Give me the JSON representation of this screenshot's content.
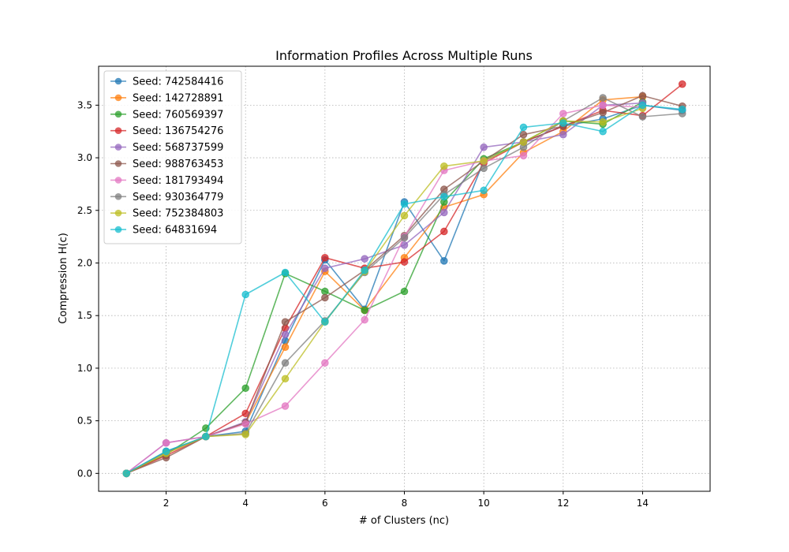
{
  "chart_data": {
    "type": "line",
    "title": "Information Profiles Across Multiple Runs",
    "xlabel": "# of Clusters (nc)",
    "ylabel": "Compression H(c)",
    "xlim": [
      0.3,
      15.7
    ],
    "ylim": [
      -0.17,
      3.87
    ],
    "x_ticks": [
      2,
      4,
      6,
      8,
      10,
      12,
      14
    ],
    "y_ticks": [
      0.0,
      0.5,
      1.0,
      1.5,
      2.0,
      2.5,
      3.0,
      3.5
    ],
    "grid": true,
    "legend_position": "upper left",
    "series": [
      {
        "name": "Seed: 742584416",
        "color": "#1f77b4",
        "x": [
          1,
          2,
          3,
          4,
          5,
          6,
          7,
          8,
          9,
          10,
          11,
          12,
          13,
          14,
          15
        ],
        "y": [
          0.0,
          0.21,
          0.35,
          0.4,
          1.26,
          2.03,
          1.56,
          2.58,
          2.02,
          2.97,
          3.15,
          3.3,
          3.37,
          3.5,
          3.45
        ]
      },
      {
        "name": "Seed: 142728891",
        "color": "#ff7f0e",
        "x": [
          1,
          2,
          3,
          4,
          5,
          6,
          7,
          8,
          9,
          10,
          11,
          12,
          13,
          14
        ],
        "y": [
          0.0,
          0.2,
          0.35,
          0.48,
          1.2,
          1.92,
          1.55,
          2.05,
          2.53,
          2.65,
          3.05,
          3.25,
          3.55,
          3.58
        ]
      },
      {
        "name": "Seed: 760569397",
        "color": "#2ca02c",
        "x": [
          1,
          2,
          3,
          4,
          5,
          6,
          7,
          8,
          9,
          10,
          11,
          12,
          13,
          14
        ],
        "y": [
          0.0,
          0.18,
          0.43,
          0.81,
          1.9,
          1.73,
          1.55,
          1.73,
          2.58,
          2.99,
          3.15,
          3.35,
          3.32,
          3.53
        ]
      },
      {
        "name": "Seed: 136754276",
        "color": "#d62728",
        "x": [
          1,
          2,
          3,
          4,
          5,
          6,
          7,
          8,
          9,
          10,
          11,
          12,
          13,
          14,
          15
        ],
        "y": [
          0.0,
          0.17,
          0.35,
          0.57,
          1.38,
          2.05,
          1.95,
          2.01,
          2.3,
          2.95,
          3.15,
          3.3,
          3.45,
          3.4,
          3.7
        ]
      },
      {
        "name": "Seed: 568737599",
        "color": "#9467bd",
        "x": [
          1,
          2,
          3,
          4,
          5,
          6,
          7,
          8,
          9,
          10,
          11,
          12,
          13,
          14
        ],
        "y": [
          0.0,
          0.29,
          0.35,
          0.49,
          1.32,
          1.95,
          2.04,
          2.17,
          2.48,
          3.1,
          3.15,
          3.22,
          3.5,
          3.52
        ]
      },
      {
        "name": "Seed: 988763453",
        "color": "#8c564b",
        "x": [
          1,
          2,
          3,
          4,
          5,
          6,
          7,
          8,
          9,
          10,
          11,
          12,
          13,
          14,
          15
        ],
        "y": [
          0.0,
          0.15,
          0.35,
          0.48,
          1.44,
          1.67,
          1.93,
          2.26,
          2.7,
          2.97,
          3.22,
          3.3,
          3.43,
          3.59,
          3.49
        ]
      },
      {
        "name": "Seed: 181793494",
        "color": "#e377c2",
        "x": [
          1,
          2,
          3,
          4,
          5,
          6,
          7,
          8,
          9,
          10,
          11,
          12,
          13,
          14
        ],
        "y": [
          0.0,
          0.29,
          0.35,
          0.47,
          0.64,
          1.05,
          1.46,
          2.25,
          2.88,
          2.97,
          3.02,
          3.42,
          3.5,
          3.48
        ]
      },
      {
        "name": "Seed: 930364779",
        "color": "#7f7f7f",
        "x": [
          1,
          2,
          3,
          4,
          5,
          6,
          7,
          8,
          9,
          10,
          11,
          12,
          13,
          14,
          15
        ],
        "y": [
          0.0,
          0.2,
          0.35,
          0.38,
          1.05,
          1.45,
          1.91,
          2.24,
          2.65,
          2.9,
          3.1,
          3.35,
          3.57,
          3.39,
          3.42
        ]
      },
      {
        "name": "Seed: 752384803",
        "color": "#bcbd22",
        "x": [
          1,
          2,
          3,
          4,
          5,
          6,
          7,
          8,
          9,
          10,
          11,
          12,
          13,
          14
        ],
        "y": [
          0.0,
          0.19,
          0.35,
          0.37,
          0.9,
          1.44,
          1.92,
          2.45,
          2.92,
          2.97,
          3.15,
          3.35,
          3.34,
          3.47
        ]
      },
      {
        "name": "Seed: 64831694",
        "color": "#17becf",
        "x": [
          1,
          2,
          3,
          4,
          5,
          6,
          7,
          8,
          9,
          10,
          11,
          12,
          13,
          14,
          15
        ],
        "y": [
          0.0,
          0.21,
          0.35,
          1.7,
          1.91,
          1.44,
          1.93,
          2.56,
          2.63,
          2.69,
          3.29,
          3.33,
          3.25,
          3.5,
          3.46
        ]
      }
    ]
  }
}
